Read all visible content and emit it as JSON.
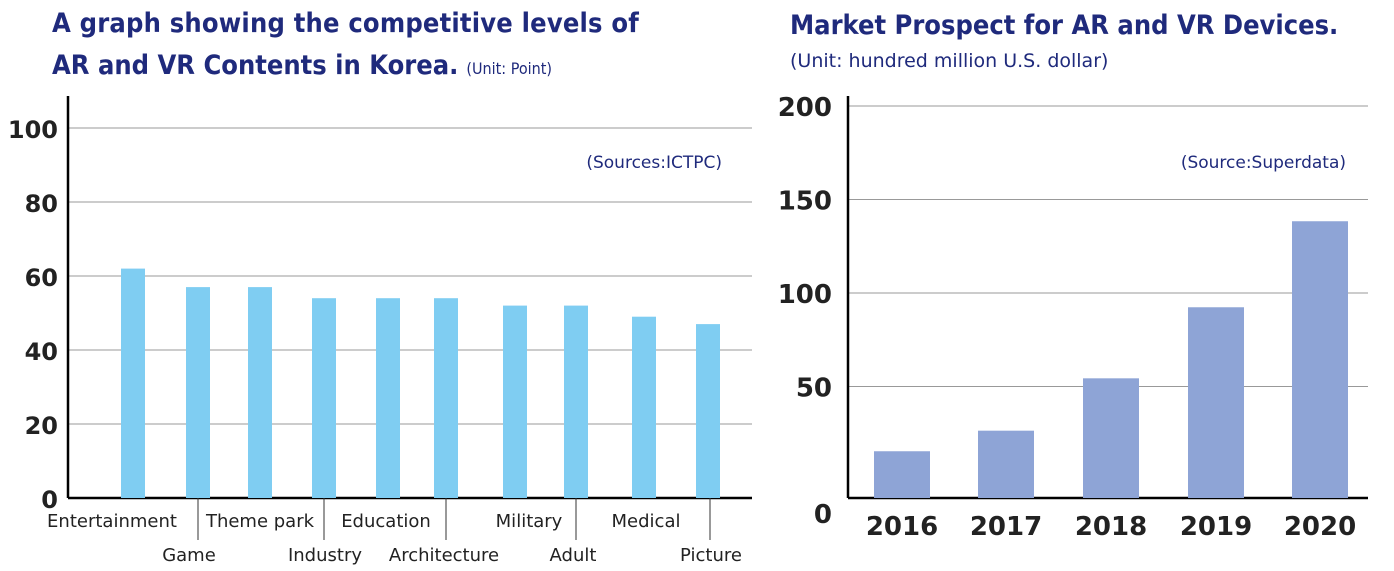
{
  "chart_data": [
    {
      "type": "bar",
      "title_line1": "A graph showing the competitive levels of",
      "title_line2": "AR and VR Contents in Korea.",
      "unit": "(Unit: Point)",
      "source": "(Sources:ICTPC)",
      "categories": [
        "Entertainment",
        "Game",
        "Theme park",
        "Industry",
        "Education",
        "Architecture",
        "Military",
        "Adult",
        "Medical",
        "Picture"
      ],
      "values": [
        62,
        57,
        57,
        54,
        54,
        54,
        52,
        52,
        49,
        47
      ],
      "ylim": [
        0,
        110
      ],
      "yticks": [
        0,
        20,
        40,
        60,
        80,
        100
      ],
      "bar_color": "#7fcdf2",
      "grid": true
    },
    {
      "type": "bar",
      "title": "Market Prospect for AR and VR Devices.",
      "unit": "(Unit: hundred million U.S. dollar)",
      "source": "(Source:Superdata)",
      "categories": [
        "2016",
        "2017",
        "2018",
        "2019",
        "2020"
      ],
      "values": [
        25,
        36,
        64,
        102,
        148
      ],
      "ylim": [
        0,
        200
      ],
      "yticks": [
        0,
        50,
        100,
        150,
        200
      ],
      "bar_color": "#8ea4d6",
      "grid": true
    }
  ],
  "colors": {
    "title": "#1f2a7c",
    "grid": "#999999",
    "axis": "#000000"
  }
}
